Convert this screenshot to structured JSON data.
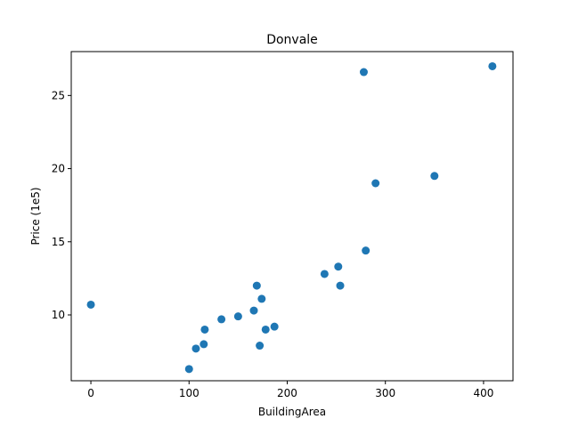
{
  "chart_data": {
    "type": "scatter",
    "title": "Donvale",
    "xlabel": "BuildingArea",
    "ylabel": "Price (1e5)",
    "xlim": [
      -20,
      430
    ],
    "ylim": [
      5.5,
      28.0
    ],
    "xticks": [
      0,
      100,
      200,
      300,
      400
    ],
    "yticks": [
      10,
      15,
      20,
      25
    ],
    "grid": false,
    "legend": "none",
    "marker_color": "#1f77b4",
    "points": [
      {
        "x": 0,
        "y": 10.7
      },
      {
        "x": 100,
        "y": 6.3
      },
      {
        "x": 107,
        "y": 7.7
      },
      {
        "x": 115,
        "y": 8.0
      },
      {
        "x": 116,
        "y": 9.0
      },
      {
        "x": 133,
        "y": 9.7
      },
      {
        "x": 150,
        "y": 9.9
      },
      {
        "x": 166,
        "y": 10.3
      },
      {
        "x": 169,
        "y": 12.0
      },
      {
        "x": 172,
        "y": 7.9
      },
      {
        "x": 174,
        "y": 11.1
      },
      {
        "x": 178,
        "y": 9.0
      },
      {
        "x": 187,
        "y": 9.2
      },
      {
        "x": 238,
        "y": 12.8
      },
      {
        "x": 252,
        "y": 13.3
      },
      {
        "x": 254,
        "y": 12.0
      },
      {
        "x": 278,
        "y": 26.6
      },
      {
        "x": 280,
        "y": 14.4
      },
      {
        "x": 290,
        "y": 19.0
      },
      {
        "x": 350,
        "y": 19.5
      },
      {
        "x": 409,
        "y": 27.0
      }
    ]
  }
}
